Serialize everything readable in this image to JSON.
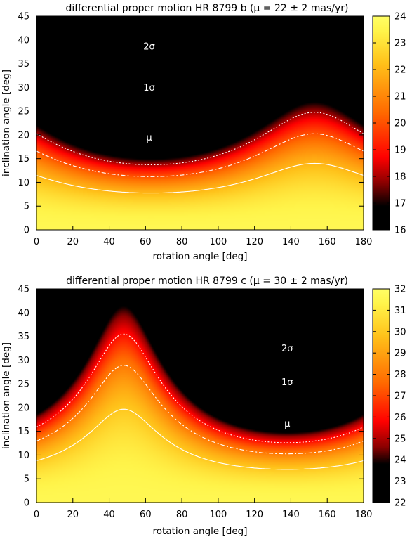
{
  "chart_data": [
    {
      "type": "heatmap",
      "title": "differential proper motion HR 8799 b (μ = 22 ± 2 mas/yr)",
      "xlabel": "rotation angle [deg]",
      "ylabel": "inclination angle [deg]",
      "xlim": [
        0,
        180
      ],
      "ylim": [
        0,
        45
      ],
      "xticks": [
        "0",
        "20",
        "40",
        "60",
        "80",
        "100",
        "120",
        "140",
        "160",
        "180"
      ],
      "yticks": [
        "0",
        "5",
        "10",
        "15",
        "20",
        "25",
        "30",
        "35",
        "40",
        "45"
      ],
      "colorbar": {
        "min": 16,
        "max": 24,
        "ticks": [
          "16",
          "17",
          "18",
          "19",
          "20",
          "21",
          "22",
          "23",
          "24"
        ]
      },
      "colormap": [
        "#000000",
        "#000000",
        "#8b0000",
        "#ff0000",
        "#ff6a00",
        "#ffc21a",
        "#fff44a",
        "#ffff66"
      ],
      "colormap_stops": [
        0,
        0.11,
        0.22,
        0.34,
        0.55,
        0.78,
        0.93,
        1.0
      ],
      "grid": false,
      "surface": {
        "min_x": 63,
        "amplitude": 2.6,
        "scale": 4.5
      },
      "contours": [
        {
          "label": "μ",
          "level": 22,
          "style": "solid",
          "label_x": 62,
          "label_y": 18.8
        },
        {
          "label": "1σ",
          "level": 20,
          "style": "dashdot",
          "label_x": 62,
          "label_y": 29.3
        },
        {
          "label": "2σ",
          "level": 18,
          "style": "dotted",
          "label_x": 62,
          "label_y": 38.0
        }
      ]
    },
    {
      "type": "heatmap",
      "title": "differential proper motion HR 8799 c (μ = 30 ± 2 mas/yr)",
      "xlabel": "rotation angle [deg]",
      "ylabel": "inclination angle [deg]",
      "xlim": [
        0,
        180
      ],
      "ylim": [
        0,
        45
      ],
      "xticks": [
        "0",
        "20",
        "40",
        "60",
        "80",
        "100",
        "120",
        "140",
        "160",
        "180"
      ],
      "yticks": [
        "0",
        "5",
        "10",
        "15",
        "20",
        "25",
        "30",
        "35",
        "40",
        "45"
      ],
      "colorbar": {
        "min": 22,
        "max": 32,
        "ticks": [
          "22",
          "23",
          "24",
          "25",
          "26",
          "27",
          "28",
          "29",
          "30",
          "31",
          "32"
        ]
      },
      "colormap": [
        "#000000",
        "#000000",
        "#8b0000",
        "#ff0000",
        "#ff6a00",
        "#ffc21a",
        "#fff44a",
        "#ffff66"
      ],
      "colormap_stops": [
        0,
        0.18,
        0.26,
        0.38,
        0.56,
        0.78,
        0.93,
        1.0
      ],
      "grid": false,
      "surface": {
        "min_x": 138,
        "amplitude": 3.7,
        "scale": 4.6
      },
      "contours": [
        {
          "label": "μ",
          "level": 30,
          "style": "solid",
          "label_x": 138,
          "label_y": 16.0
        },
        {
          "label": "1σ",
          "level": 28,
          "style": "dashdot",
          "label_x": 138,
          "label_y": 24.7
        },
        {
          "label": "2σ",
          "level": 26,
          "style": "dotted",
          "label_x": 138,
          "label_y": 31.8
        }
      ]
    }
  ]
}
